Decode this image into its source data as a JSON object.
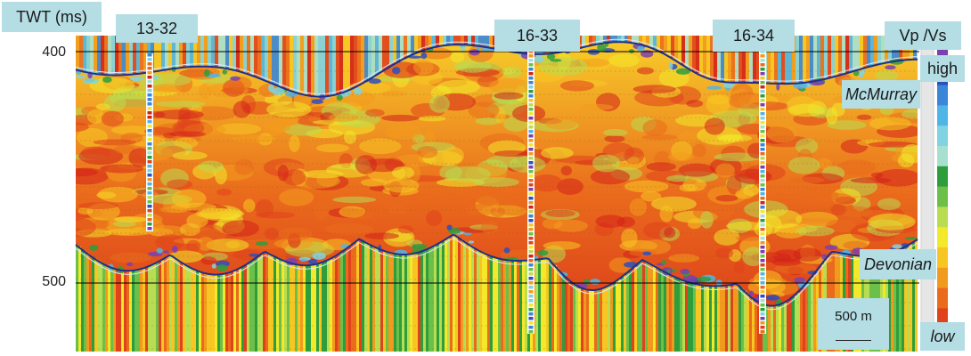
{
  "chart_data": {
    "type": "heatmap",
    "title": "",
    "ylabel": "TWT (ms)",
    "y_ticks": [
      400,
      500
    ],
    "colorbar": {
      "title": "Vp /Vs",
      "high_label": "high",
      "low_label": "low",
      "colors": [
        "#7b3fb0",
        "#2c4fc0",
        "#3a86d8",
        "#4fb5e6",
        "#7fd3e3",
        "#a8e0d0",
        "#2e9e3c",
        "#6cc04a",
        "#b8dd50",
        "#f3e82a",
        "#f7c623",
        "#f29a1d",
        "#ea6b1c",
        "#e0421c",
        "#d32019"
      ]
    },
    "wells": [
      "13-32",
      "16-33",
      "16-34"
    ],
    "horizons": [
      "McMurray",
      "Devonian"
    ],
    "scale_bar": "500 m"
  }
}
